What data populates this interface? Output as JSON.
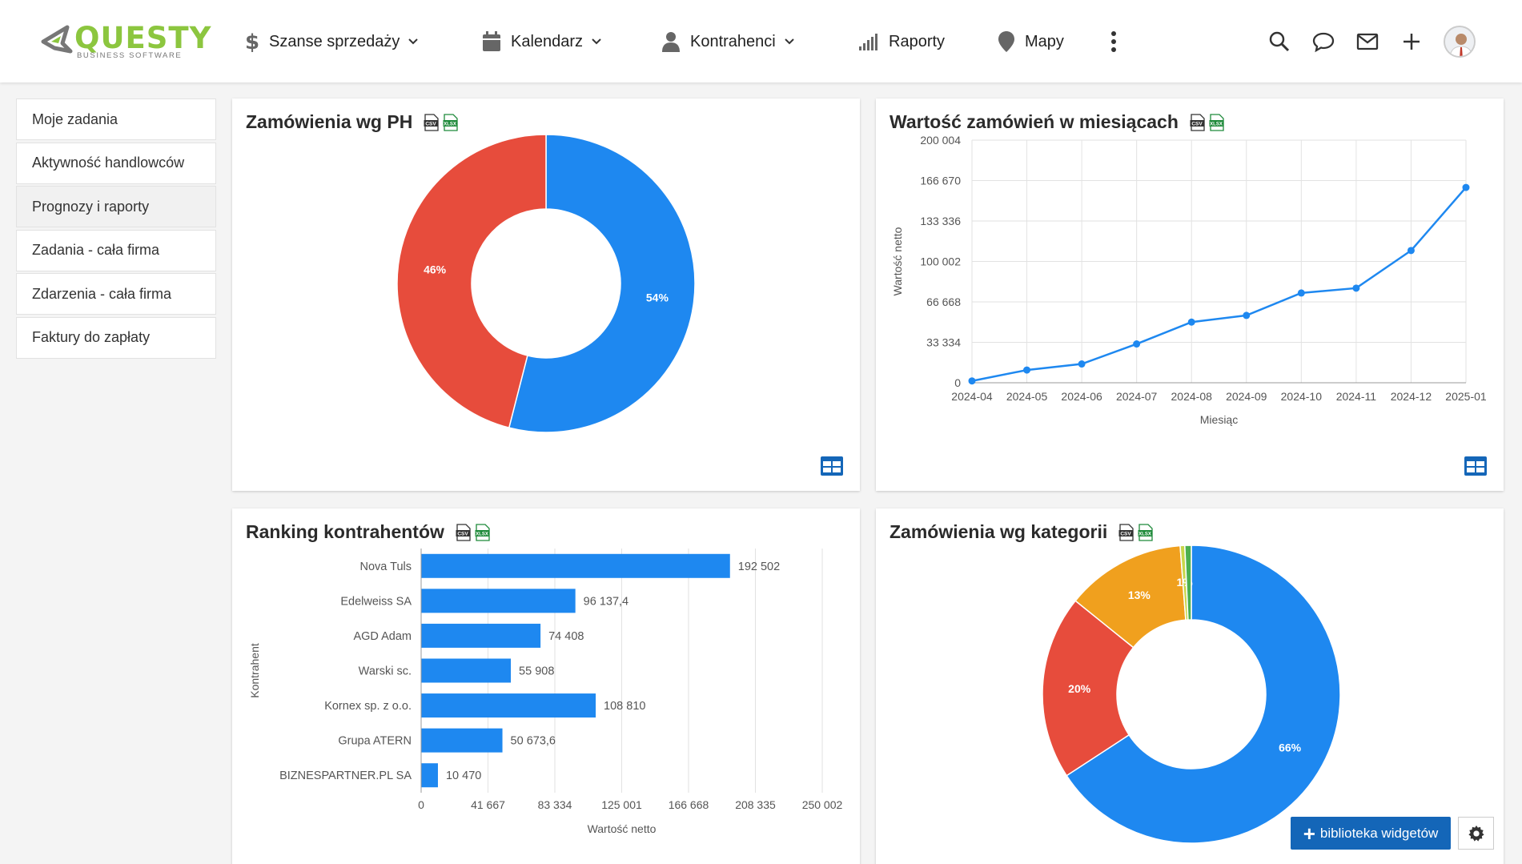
{
  "app": {
    "logo_text": "QUESTY",
    "logo_subtitle": "BUSINESS SOFTWARE",
    "brand_color": "#8cc63f"
  },
  "nav": {
    "items": [
      {
        "label": "Szanse sprzedaży",
        "icon": "dollar-icon",
        "dropdown": true
      },
      {
        "label": "Kalendarz",
        "icon": "calendar-icon",
        "dropdown": true
      },
      {
        "label": "Kontrahenci",
        "icon": "person-icon",
        "dropdown": true
      },
      {
        "label": "Raporty",
        "icon": "signal-bars-icon",
        "dropdown": false
      },
      {
        "label": "Mapy",
        "icon": "map-pin-icon",
        "dropdown": false
      }
    ],
    "more_icon": "more-vertical-icon",
    "right_icons": [
      "search-icon",
      "chat-icon",
      "mail-icon",
      "plus-icon",
      "avatar"
    ]
  },
  "sidebar": {
    "items": [
      {
        "label": "Moje zadania"
      },
      {
        "label": "Aktywność handlowców"
      },
      {
        "label": "Prognozy i raporty",
        "active": true
      },
      {
        "label": "Zadania - cała firma"
      },
      {
        "label": "Zdarzenia - cała firma"
      },
      {
        "label": "Faktury do zapłaty"
      }
    ]
  },
  "widgets": {
    "ph": {
      "title": "Zamówienia wg PH"
    },
    "monthly": {
      "title": "Wartość zamówień w miesiącach"
    },
    "ranking": {
      "title": "Ranking kontrahentów"
    },
    "category": {
      "title": "Zamówienia wg kategorii"
    }
  },
  "footer": {
    "library_button": "biblioteka widgetów",
    "settings_icon": "gear-icon"
  },
  "colors": {
    "blue": "#1e88f0",
    "red": "#e74c3c",
    "orange": "#f0a01e",
    "green": "#4caf50",
    "yellow": "#c8d64a",
    "accent": "#1466b8"
  },
  "chart_data": [
    {
      "id": "ph",
      "type": "pie",
      "donut": true,
      "title": "Zamówienia wg PH",
      "slices": [
        {
          "label": "54%",
          "value": 54,
          "color": "#1e88f0"
        },
        {
          "label": "46%",
          "value": 46,
          "color": "#e74c3c"
        }
      ]
    },
    {
      "id": "monthly",
      "type": "line",
      "title": "Wartość zamówień w miesiącach",
      "xlabel": "Miesiąc",
      "ylabel": "Wartość netto",
      "x": [
        "2024-04",
        "2024-05",
        "2024-06",
        "2024-07",
        "2024-08",
        "2024-09",
        "2024-10",
        "2024-11",
        "2024-12",
        "2025-01"
      ],
      "values": [
        1500,
        10500,
        15500,
        32000,
        50000,
        55500,
        74000,
        78000,
        109000,
        161000
      ],
      "yticks": [
        "0",
        "33 334",
        "66 668",
        "100 002",
        "133 336",
        "166 670",
        "200 004"
      ],
      "ylim": [
        0,
        200004
      ],
      "grid": true
    },
    {
      "id": "ranking",
      "type": "bar",
      "orientation": "horizontal",
      "title": "Ranking kontrahentów",
      "xlabel": "Wartość netto",
      "ylabel": "Kontrahent",
      "categories": [
        "Nova Tuls",
        "Edelweiss SA",
        "AGD Adam",
        "Warski sc.",
        "Kornex sp. z o.o.",
        "Grupa ATERN",
        "BIZNESPARTNER.PL SA"
      ],
      "values": [
        192502,
        96137.4,
        74408,
        55908,
        108810,
        50673.6,
        10470
      ],
      "value_labels": [
        "192 502",
        "96 137,4",
        "74 408",
        "55 908",
        "108 810",
        "50 673,6",
        "10 470"
      ],
      "xticks": [
        "0",
        "41 667",
        "83 334",
        "125 001",
        "166 668",
        "208 335",
        "250 002"
      ],
      "xlim": [
        0,
        250002
      ]
    },
    {
      "id": "category",
      "type": "pie",
      "donut": true,
      "title": "Zamówienia wg kategorii",
      "slices": [
        {
          "label": "66%",
          "value": 65.8,
          "color": "#1e88f0"
        },
        {
          "label": "20%",
          "value": 20,
          "color": "#e74c3c"
        },
        {
          "label": "13%",
          "value": 13,
          "color": "#f0a01e"
        },
        {
          "label": "1%",
          "value": 0.5,
          "color": "#c8d64a"
        },
        {
          "label": "",
          "value": 0.7,
          "color": "#4caf50"
        }
      ]
    }
  ]
}
